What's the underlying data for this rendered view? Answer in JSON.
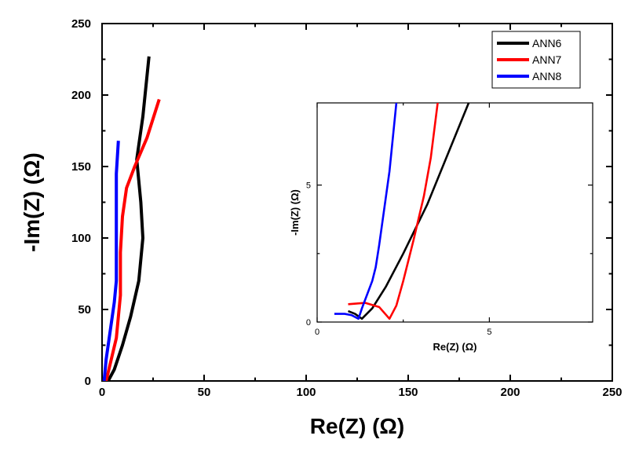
{
  "chart_data": {
    "type": "line",
    "xlabel": "Re(Z) (Ω)",
    "ylabel": "-Im(Z) (Ω)",
    "xlim": [
      0,
      250
    ],
    "ylim": [
      0,
      250
    ],
    "xticks": [
      0,
      50,
      100,
      150,
      200,
      250
    ],
    "yticks": [
      0,
      50,
      100,
      150,
      200,
      250
    ],
    "legend": "top-right",
    "series": [
      {
        "name": "ANN6",
        "color": "#000000",
        "x": [
          3,
          6,
          10,
          14,
          18,
          20,
          19,
          18,
          17,
          20,
          23
        ],
        "y": [
          0,
          8,
          25,
          45,
          70,
          100,
          125,
          140,
          155,
          185,
          227
        ]
      },
      {
        "name": "ANN7",
        "color": "#ff0000",
        "x": [
          2,
          4,
          7,
          9,
          9,
          9,
          10,
          12,
          16,
          22,
          28
        ],
        "y": [
          0,
          12,
          30,
          60,
          70,
          90,
          115,
          135,
          150,
          170,
          197
        ]
      },
      {
        "name": "ANN8",
        "color": "#0000ff",
        "x": [
          1,
          2,
          4,
          6,
          7,
          7,
          7,
          7,
          8
        ],
        "y": [
          0,
          15,
          35,
          55,
          70,
          90,
          120,
          145,
          168
        ]
      }
    ],
    "inset": {
      "xlabel": "Re(Z) (Ω)",
      "ylabel": "-Im(Z) (Ω)",
      "xlim": [
        0,
        8
      ],
      "ylim": [
        0,
        8
      ],
      "xticks": [
        0,
        5
      ],
      "yticks": [
        0,
        5
      ],
      "series": [
        {
          "name": "ANN6",
          "color": "#000000",
          "x": [
            0.9,
            1.1,
            1.3,
            1.6,
            2.0,
            2.5,
            3.2,
            4.4
          ],
          "y": [
            0.4,
            0.3,
            0.12,
            0.5,
            1.3,
            2.5,
            4.3,
            8.0
          ]
        },
        {
          "name": "ANN7",
          "color": "#ff0000",
          "x": [
            0.9,
            1.4,
            1.8,
            2.1,
            2.3,
            2.5,
            2.8,
            3.1,
            3.3,
            3.5
          ],
          "y": [
            0.65,
            0.7,
            0.55,
            0.12,
            0.6,
            1.5,
            3.0,
            4.6,
            6.0,
            8.0
          ]
        },
        {
          "name": "ANN8",
          "color": "#0000ff",
          "x": [
            0.5,
            0.8,
            1.0,
            1.2,
            1.3,
            1.6,
            1.7,
            1.8,
            2.1,
            2.3
          ],
          "y": [
            0.3,
            0.3,
            0.25,
            0.12,
            0.5,
            1.5,
            2.0,
            2.8,
            5.5,
            8.0
          ]
        }
      ]
    }
  }
}
